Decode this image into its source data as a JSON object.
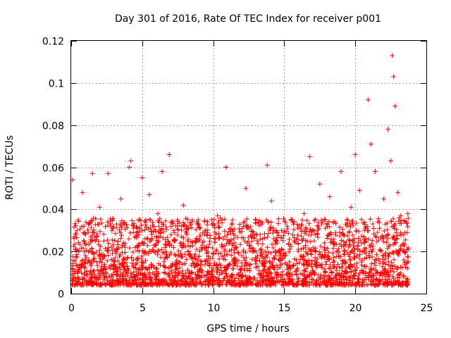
{
  "chart_data": {
    "type": "scatter",
    "title": "Day 301 of 2016, Rate Of TEC Index for receiver p001",
    "xlabel": "GPS time / hours",
    "ylabel": "ROTI / TECUs",
    "xlim": [
      0,
      25
    ],
    "ylim": [
      0,
      0.12
    ],
    "xticks": [
      0,
      5,
      10,
      15,
      20,
      25
    ],
    "xtick_labels": [
      "0",
      "5",
      "10",
      "15",
      "20",
      "25"
    ],
    "yticks": [
      0,
      0.02,
      0.04,
      0.06,
      0.08,
      0.1,
      0.12
    ],
    "ytick_labels": [
      "0",
      "0.02",
      "0.04",
      "0.06",
      "0.08",
      "0.1",
      "0.12"
    ],
    "grid": true,
    "marker": "+",
    "color": "#ff0000",
    "series": [
      {
        "name": "ROTI",
        "x": [
          0.1,
          0.3,
          0.5,
          0.8,
          1.0,
          1.2,
          1.5,
          1.8,
          2.0,
          2.3,
          2.6,
          2.9,
          3.2,
          3.5,
          3.8,
          4.1,
          4.2,
          4.4,
          4.7,
          5.0,
          5.2,
          5.5,
          5.8,
          6.1,
          6.4,
          6.7,
          6.9,
          7.2,
          7.5,
          7.9,
          8.2,
          8.5,
          8.9,
          9.2,
          9.6,
          10.0,
          10.3,
          10.7,
          10.9,
          11.2,
          11.6,
          12.0,
          12.3,
          12.7,
          13.0,
          13.4,
          13.8,
          14.1,
          14.5,
          14.9,
          15.2,
          15.6,
          16.0,
          16.4,
          16.8,
          17.1,
          17.5,
          17.9,
          18.2,
          18.6,
          19.0,
          19.3,
          19.7,
          20.0,
          20.3,
          20.6,
          20.9,
          21.1,
          21.4,
          21.7,
          22.0,
          22.3,
          22.5,
          22.6,
          22.7,
          22.8,
          23.0,
          23.2,
          23.5,
          23.7
        ],
        "y": [
          0.054,
          0.021,
          0.035,
          0.048,
          0.018,
          0.029,
          0.057,
          0.015,
          0.041,
          0.025,
          0.057,
          0.019,
          0.033,
          0.045,
          0.022,
          0.06,
          0.063,
          0.031,
          0.017,
          0.055,
          0.026,
          0.047,
          0.02,
          0.038,
          0.058,
          0.023,
          0.066,
          0.03,
          0.018,
          0.042,
          0.025,
          0.034,
          0.016,
          0.021,
          0.029,
          0.019,
          0.037,
          0.026,
          0.06,
          0.031,
          0.022,
          0.018,
          0.05,
          0.027,
          0.035,
          0.019,
          0.061,
          0.044,
          0.024,
          0.017,
          0.032,
          0.028,
          0.021,
          0.038,
          0.065,
          0.025,
          0.052,
          0.018,
          0.046,
          0.029,
          0.058,
          0.023,
          0.041,
          0.066,
          0.049,
          0.027,
          0.092,
          0.071,
          0.058,
          0.031,
          0.045,
          0.078,
          0.063,
          0.113,
          0.103,
          0.089,
          0.048,
          0.037,
          0.029,
          0.038
        ]
      }
    ]
  }
}
